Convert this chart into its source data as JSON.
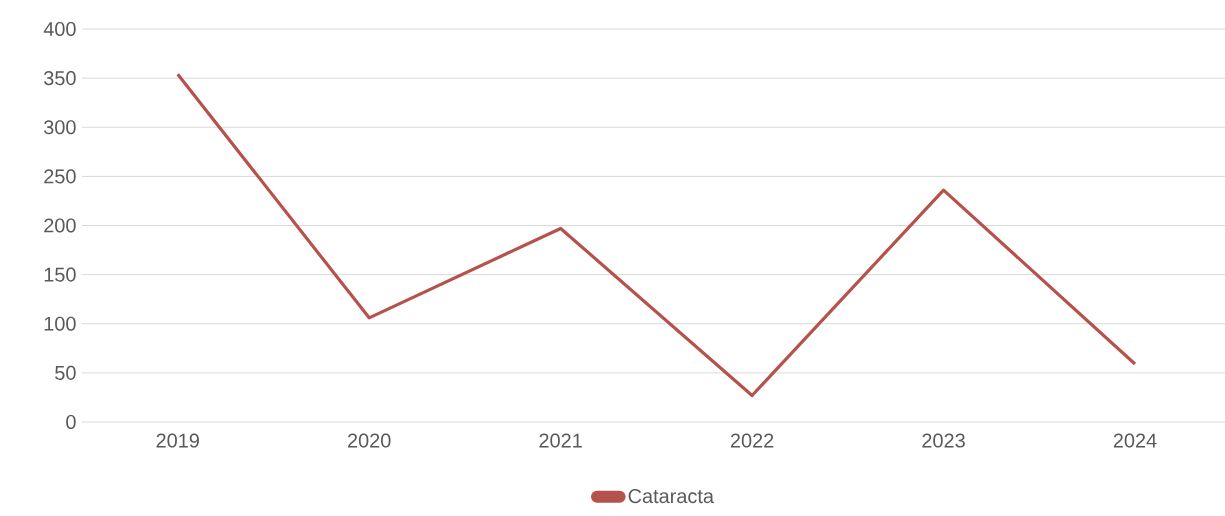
{
  "chart_data": {
    "type": "line",
    "categories": [
      "2019",
      "2020",
      "2021",
      "2022",
      "2023",
      "2024"
    ],
    "series": [
      {
        "name": "Cataracta",
        "color": "#b5524c",
        "values": [
          354,
          106,
          197,
          27,
          236,
          59
        ]
      }
    ],
    "ylim": [
      0,
      400
    ],
    "yticks": [
      0,
      50,
      100,
      150,
      200,
      250,
      300,
      350,
      400
    ],
    "grid": "y",
    "legend": "bottom",
    "marker": "none",
    "line_style": "solid"
  }
}
